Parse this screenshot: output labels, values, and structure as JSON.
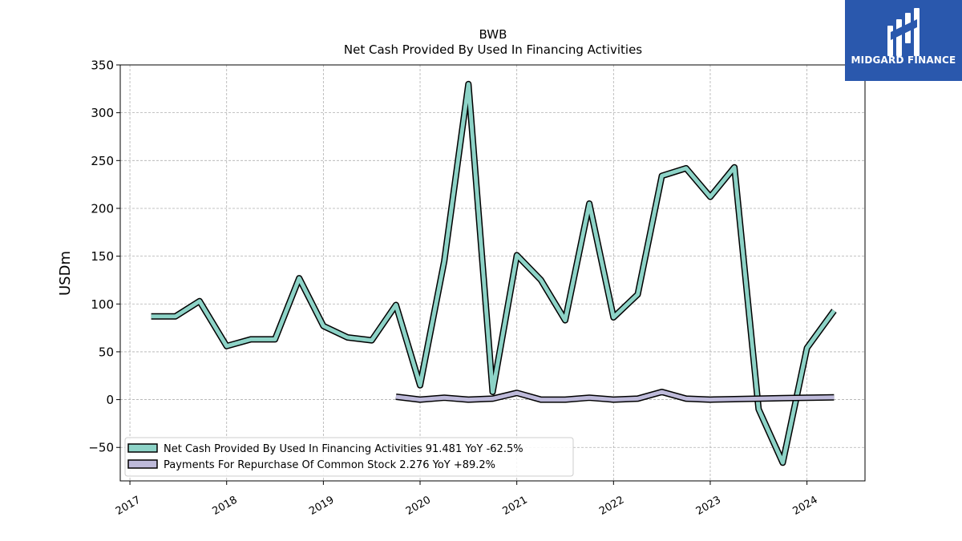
{
  "header": {
    "ticker": "BWB",
    "subtitle": "Net Cash Provided By Used In Financing Activities"
  },
  "logo": {
    "text": "MIDGARD FINANCE",
    "icon": "midgard-logo-icon",
    "background": "#2a58ad"
  },
  "chart_data": {
    "type": "line",
    "title": "BWB",
    "subtitle": "Net Cash Provided By Used In Financing Activities",
    "ylabel": "USDm",
    "xlabel": "",
    "xlim": [
      2016.9,
      2024.6
    ],
    "ylim": [
      -85,
      350
    ],
    "x_ticks": [
      "2017",
      "2018",
      "2019",
      "2020",
      "2021",
      "2022",
      "2023",
      "2024"
    ],
    "y_ticks": [
      350,
      300,
      250,
      200,
      150,
      100,
      50,
      0,
      -50
    ],
    "y_tick_labels": [
      "350",
      "300",
      "250",
      "200",
      "150",
      "100",
      "50",
      "0",
      "−50"
    ],
    "grid": true,
    "legend_position": "bottom-left",
    "series": [
      {
        "name": "Net Cash Provided By Used In Financing Activities",
        "legend_label": "Net Cash Provided By Used In Financing Activities  91.481 YoY -62.5%",
        "color": "#8dd3c7",
        "x": [
          2017.22,
          2017.47,
          2017.72,
          2018.0,
          2018.25,
          2018.5,
          2018.75,
          2019.0,
          2019.25,
          2019.5,
          2019.75,
          2020.0,
          2020.25,
          2020.5,
          2020.75,
          2021.0,
          2021.25,
          2021.5,
          2021.75,
          2022.0,
          2022.25,
          2022.5,
          2022.75,
          2023.0,
          2023.25,
          2023.5,
          2023.75,
          2024.0,
          2024.28
        ],
        "values": [
          87,
          87,
          103,
          56,
          63,
          63,
          127,
          77,
          65,
          62,
          99,
          15,
          145,
          330,
          8,
          151,
          125,
          83,
          205,
          86,
          110,
          234,
          242,
          212,
          243,
          -10,
          -66,
          54,
          93
        ]
      },
      {
        "name": "Payments For Repurchase Of Common Stock",
        "legend_label": "Payments For Repurchase Of Common Stock  2.276 YoY +89.2%",
        "color": "#bebada",
        "x": [
          2019.75,
          2020.0,
          2020.25,
          2020.5,
          2020.75,
          2021.0,
          2021.25,
          2021.5,
          2021.75,
          2022.0,
          2022.25,
          2022.5,
          2022.75,
          2023.0,
          2023.25,
          2023.5,
          2023.75,
          2024.0,
          2024.28
        ],
        "values": [
          3,
          0,
          2,
          0,
          1,
          7,
          0,
          0,
          2,
          0,
          1,
          8,
          1,
          0,
          0.5,
          1,
          1.5,
          2,
          2.3
        ]
      }
    ]
  }
}
